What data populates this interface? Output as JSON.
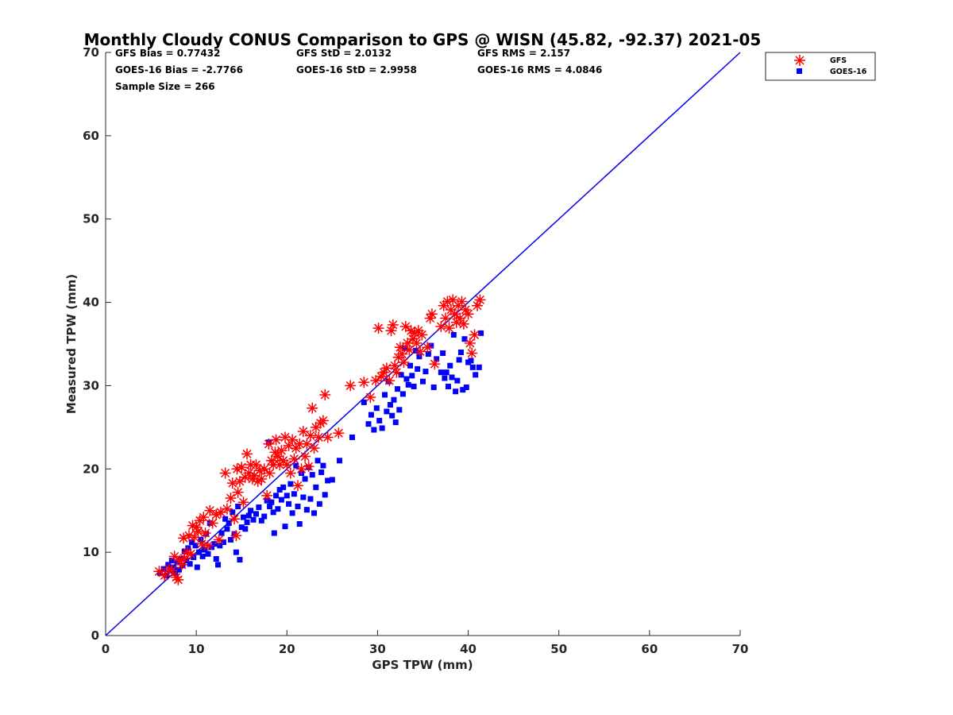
{
  "chart_data": {
    "type": "scatter",
    "title": "Monthly Cloudy CONUS Comparison to GPS @ WISN (45.82, -92.37) 2021-05",
    "xlabel": "GPS TPW (mm)",
    "ylabel": "Measured TPW (mm)",
    "xlim": [
      0,
      70
    ],
    "ylim": [
      0,
      70
    ],
    "xticks": [
      0,
      10,
      20,
      30,
      40,
      50,
      60,
      70
    ],
    "yticks": [
      0,
      10,
      20,
      30,
      40,
      50,
      60,
      70
    ],
    "grid": false,
    "legend_position": "outside-top-right",
    "reference_line": {
      "x": [
        0,
        70
      ],
      "y": [
        0,
        70
      ],
      "color": "#0000ee"
    },
    "stats": {
      "gfs_bias": "GFS Bias = 0.77432",
      "gfs_std": "GFS StD = 2.0132",
      "gfs_rms": "GFS RMS = 2.157",
      "goes_bias": "GOES-16 Bias = -2.7766",
      "goes_std": "GOES-16 StD = 2.9958",
      "goes_rms": "GOES-16 RMS = 4.0846",
      "sample_size": "Sample Size = 266"
    },
    "series": [
      {
        "name": "GFS",
        "marker": "asterisk",
        "color": "#ff0000",
        "points": [
          [
            5.9,
            7.7
          ],
          [
            6.5,
            7.2
          ],
          [
            7.0,
            8.0
          ],
          [
            7.3,
            7.8
          ],
          [
            7.6,
            9.5
          ],
          [
            7.8,
            7.0
          ],
          [
            8.0,
            6.7
          ],
          [
            8.2,
            9.0
          ],
          [
            8.4,
            8.5
          ],
          [
            8.6,
            11.7
          ],
          [
            8.7,
            9.3
          ],
          [
            9.0,
            10.0
          ],
          [
            9.2,
            12.0
          ],
          [
            9.4,
            9.8
          ],
          [
            9.6,
            13.2
          ],
          [
            9.8,
            11.8
          ],
          [
            10.0,
            13.0
          ],
          [
            10.2,
            12.5
          ],
          [
            10.4,
            13.8
          ],
          [
            10.6,
            11.0
          ],
          [
            10.8,
            14.2
          ],
          [
            11.0,
            12.3
          ],
          [
            11.3,
            10.8
          ],
          [
            11.5,
            15.0
          ],
          [
            11.8,
            13.5
          ],
          [
            12.2,
            14.5
          ],
          [
            12.5,
            11.5
          ],
          [
            12.7,
            14.8
          ],
          [
            13.2,
            19.5
          ],
          [
            13.4,
            15.2
          ],
          [
            13.8,
            16.5
          ],
          [
            14.0,
            18.3
          ],
          [
            14.2,
            14.0
          ],
          [
            14.4,
            12.0
          ],
          [
            14.5,
            20.0
          ],
          [
            14.6,
            17.2
          ],
          [
            14.8,
            18.5
          ],
          [
            15.0,
            20.2
          ],
          [
            15.2,
            16.0
          ],
          [
            15.4,
            19.0
          ],
          [
            15.6,
            21.8
          ],
          [
            15.8,
            19.5
          ],
          [
            16.0,
            20.5
          ],
          [
            16.2,
            18.8
          ],
          [
            16.4,
            19.2
          ],
          [
            16.6,
            20.5
          ],
          [
            16.8,
            18.5
          ],
          [
            17.0,
            19.8
          ],
          [
            17.2,
            18.8
          ],
          [
            17.5,
            20.0
          ],
          [
            17.8,
            16.8
          ],
          [
            18.0,
            23.0
          ],
          [
            18.1,
            19.5
          ],
          [
            18.3,
            21.0
          ],
          [
            18.5,
            20.5
          ],
          [
            18.7,
            22.0
          ],
          [
            18.8,
            23.5
          ],
          [
            19.0,
            21.5
          ],
          [
            19.2,
            20.5
          ],
          [
            19.4,
            22.2
          ],
          [
            19.6,
            21.0
          ],
          [
            19.8,
            23.8
          ],
          [
            20.0,
            20.5
          ],
          [
            20.2,
            22.8
          ],
          [
            20.4,
            19.5
          ],
          [
            20.6,
            23.5
          ],
          [
            20.8,
            21.2
          ],
          [
            21.0,
            22.5
          ],
          [
            21.2,
            18.0
          ],
          [
            21.4,
            23.0
          ],
          [
            21.6,
            20.0
          ],
          [
            21.8,
            24.5
          ],
          [
            22.0,
            21.5
          ],
          [
            22.2,
            23.0
          ],
          [
            22.4,
            20.3
          ],
          [
            22.6,
            24.0
          ],
          [
            22.8,
            27.3
          ],
          [
            23.0,
            22.5
          ],
          [
            23.2,
            25.0
          ],
          [
            23.5,
            23.8
          ],
          [
            23.7,
            25.5
          ],
          [
            24.0,
            25.8
          ],
          [
            24.2,
            28.9
          ],
          [
            24.5,
            23.8
          ],
          [
            25.7,
            24.3
          ],
          [
            27.0,
            30.0
          ],
          [
            28.5,
            30.4
          ],
          [
            29.2,
            28.6
          ],
          [
            29.8,
            30.6
          ],
          [
            30.1,
            36.9
          ],
          [
            30.4,
            31.1
          ],
          [
            30.7,
            31.6
          ],
          [
            31.0,
            32.1
          ],
          [
            31.3,
            30.6
          ],
          [
            31.5,
            36.6
          ],
          [
            31.7,
            37.3
          ],
          [
            31.9,
            32.4
          ],
          [
            32.1,
            31.6
          ],
          [
            32.3,
            33.4
          ],
          [
            32.5,
            34.6
          ],
          [
            32.7,
            33.8
          ],
          [
            32.9,
            32.8
          ],
          [
            33.1,
            37.1
          ],
          [
            33.3,
            35.1
          ],
          [
            33.5,
            34.3
          ],
          [
            33.7,
            36.6
          ],
          [
            33.9,
            35.6
          ],
          [
            34.1,
            36.3
          ],
          [
            34.3,
            35.1
          ],
          [
            34.5,
            36.6
          ],
          [
            34.7,
            34.1
          ],
          [
            34.9,
            36.1
          ],
          [
            35.5,
            34.6
          ],
          [
            35.8,
            38.1
          ],
          [
            36.0,
            38.6
          ],
          [
            36.3,
            32.6
          ],
          [
            37.0,
            37.1
          ],
          [
            37.3,
            39.6
          ],
          [
            37.5,
            38.1
          ],
          [
            37.7,
            40.1
          ],
          [
            37.9,
            36.9
          ],
          [
            38.1,
            39.1
          ],
          [
            38.3,
            40.3
          ],
          [
            38.5,
            38.6
          ],
          [
            38.7,
            37.6
          ],
          [
            38.9,
            39.6
          ],
          [
            39.1,
            38.1
          ],
          [
            39.3,
            40.1
          ],
          [
            39.5,
            37.4
          ],
          [
            39.7,
            39.1
          ],
          [
            40.0,
            38.6
          ],
          [
            40.2,
            35.1
          ],
          [
            40.4,
            33.9
          ],
          [
            40.7,
            36.1
          ],
          [
            41.0,
            39.6
          ],
          [
            41.3,
            40.3
          ]
        ]
      },
      {
        "name": "GOES-16",
        "marker": "square",
        "color": "#0000ff",
        "points": [
          [
            6.0,
            7.5
          ],
          [
            6.4,
            8.0
          ],
          [
            6.7,
            7.2
          ],
          [
            6.9,
            8.5
          ],
          [
            7.1,
            7.8
          ],
          [
            7.3,
            9.0
          ],
          [
            7.5,
            8.2
          ],
          [
            7.7,
            7.5
          ],
          [
            7.9,
            8.8
          ],
          [
            8.1,
            7.9
          ],
          [
            8.3,
            9.2
          ],
          [
            8.5,
            8.4
          ],
          [
            8.7,
            10.1
          ],
          [
            8.9,
            9.0
          ],
          [
            9.1,
            10.5
          ],
          [
            9.3,
            8.6
          ],
          [
            9.5,
            11.2
          ],
          [
            9.7,
            9.4
          ],
          [
            9.9,
            10.8
          ],
          [
            10.1,
            8.2
          ],
          [
            10.3,
            10.0
          ],
          [
            10.5,
            11.5
          ],
          [
            10.7,
            9.5
          ],
          [
            10.9,
            10.3
          ],
          [
            11.1,
            12.2
          ],
          [
            11.3,
            9.8
          ],
          [
            11.5,
            13.5
          ],
          [
            11.7,
            10.6
          ],
          [
            12.0,
            11.0
          ],
          [
            12.2,
            9.2
          ],
          [
            12.4,
            8.5
          ],
          [
            12.6,
            10.8
          ],
          [
            12.8,
            12.3
          ],
          [
            13.0,
            11.2
          ],
          [
            13.2,
            14.0
          ],
          [
            13.4,
            12.8
          ],
          [
            13.6,
            13.5
          ],
          [
            13.8,
            11.5
          ],
          [
            14.0,
            14.8
          ],
          [
            14.2,
            12.2
          ],
          [
            14.4,
            10.0
          ],
          [
            14.6,
            15.5
          ],
          [
            14.8,
            9.1
          ],
          [
            15.0,
            13.0
          ],
          [
            15.2,
            14.2
          ],
          [
            15.4,
            12.8
          ],
          [
            15.6,
            13.6
          ],
          [
            15.8,
            14.4
          ],
          [
            16.0,
            15.0
          ],
          [
            16.3,
            13.9
          ],
          [
            16.6,
            14.6
          ],
          [
            16.9,
            15.4
          ],
          [
            17.2,
            13.8
          ],
          [
            17.5,
            14.3
          ],
          [
            17.8,
            16.2
          ],
          [
            18.0,
            23.2
          ],
          [
            18.1,
            15.5
          ],
          [
            18.3,
            16.0
          ],
          [
            18.5,
            14.8
          ],
          [
            18.6,
            12.3
          ],
          [
            18.8,
            16.8
          ],
          [
            19.0,
            15.2
          ],
          [
            19.2,
            17.5
          ],
          [
            19.4,
            16.3
          ],
          [
            19.6,
            17.8
          ],
          [
            19.8,
            13.1
          ],
          [
            20.0,
            16.8
          ],
          [
            20.2,
            15.8
          ],
          [
            20.4,
            18.2
          ],
          [
            20.6,
            14.7
          ],
          [
            20.8,
            17.0
          ],
          [
            21.0,
            20.4
          ],
          [
            21.2,
            15.5
          ],
          [
            21.4,
            13.4
          ],
          [
            21.6,
            19.5
          ],
          [
            21.8,
            16.6
          ],
          [
            22.0,
            18.8
          ],
          [
            22.2,
            15.1
          ],
          [
            22.4,
            20.2
          ],
          [
            22.6,
            16.4
          ],
          [
            22.8,
            19.3
          ],
          [
            23.0,
            14.7
          ],
          [
            23.2,
            17.8
          ],
          [
            23.4,
            21.0
          ],
          [
            23.6,
            15.8
          ],
          [
            23.8,
            19.6
          ],
          [
            24.0,
            20.4
          ],
          [
            24.2,
            16.9
          ],
          [
            24.5,
            18.6
          ],
          [
            25.0,
            18.7
          ],
          [
            25.8,
            21.0
          ],
          [
            27.2,
            23.8
          ],
          [
            28.5,
            28.0
          ],
          [
            29.0,
            25.4
          ],
          [
            29.3,
            26.5
          ],
          [
            29.6,
            24.7
          ],
          [
            29.9,
            27.3
          ],
          [
            30.2,
            25.8
          ],
          [
            30.5,
            24.9
          ],
          [
            30.8,
            28.9
          ],
          [
            31.0,
            26.9
          ],
          [
            31.2,
            30.5
          ],
          [
            31.4,
            27.7
          ],
          [
            31.6,
            26.4
          ],
          [
            31.8,
            28.3
          ],
          [
            32.0,
            25.6
          ],
          [
            32.2,
            29.6
          ],
          [
            32.4,
            27.1
          ],
          [
            32.6,
            31.3
          ],
          [
            32.8,
            29.0
          ],
          [
            33.0,
            34.5
          ],
          [
            33.2,
            30.8
          ],
          [
            33.4,
            30.1
          ],
          [
            33.6,
            32.4
          ],
          [
            33.8,
            31.2
          ],
          [
            34.0,
            29.9
          ],
          [
            34.2,
            34.2
          ],
          [
            34.4,
            32.0
          ],
          [
            34.6,
            33.5
          ],
          [
            35.0,
            30.5
          ],
          [
            35.3,
            31.7
          ],
          [
            35.6,
            33.8
          ],
          [
            35.9,
            34.8
          ],
          [
            36.2,
            29.8
          ],
          [
            36.5,
            33.2
          ],
          [
            37.0,
            31.6
          ],
          [
            37.2,
            33.9
          ],
          [
            37.4,
            30.9
          ],
          [
            37.6,
            31.6
          ],
          [
            37.8,
            29.9
          ],
          [
            38.0,
            32.4
          ],
          [
            38.2,
            31.0
          ],
          [
            38.4,
            36.1
          ],
          [
            38.6,
            29.3
          ],
          [
            38.8,
            30.6
          ],
          [
            39.0,
            33.1
          ],
          [
            39.2,
            34.0
          ],
          [
            39.4,
            29.5
          ],
          [
            39.6,
            35.6
          ],
          [
            39.8,
            29.8
          ],
          [
            40.0,
            32.8
          ],
          [
            40.3,
            33.0
          ],
          [
            40.5,
            32.2
          ],
          [
            40.8,
            31.3
          ],
          [
            41.2,
            32.2
          ],
          [
            41.4,
            36.3
          ]
        ]
      }
    ]
  }
}
